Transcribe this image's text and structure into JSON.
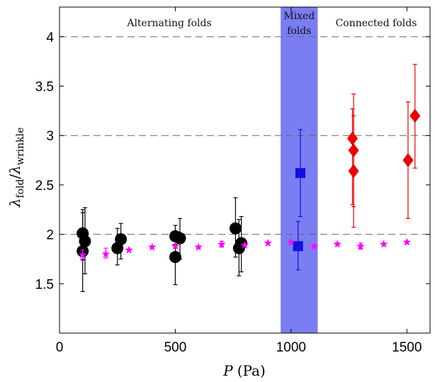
{
  "chart_data": {
    "type": "scatter",
    "xlim": [
      0,
      1600
    ],
    "ylim": [
      1.0,
      4.3
    ],
    "xticks": [
      "0",
      "500",
      "1000",
      "1500"
    ],
    "xtick_values": [
      0,
      500,
      1000,
      1500
    ],
    "yticks": [
      "1.5",
      "2",
      "2.5",
      "3",
      "3.5",
      "4"
    ],
    "ytick_values": [
      1.5,
      2,
      2.5,
      3,
      3.5,
      4
    ],
    "xlabel_main": "P",
    "xlabel_unit": "(Pa)",
    "ylabel_parts": {
      "lambda": "λ",
      "num_sub": "fold",
      "slash": "/",
      "den_sub": "wrinkle"
    },
    "dashed_lines": [
      2,
      3,
      4
    ],
    "mixed_band": {
      "x0": 955,
      "x1": 1115,
      "color": "#7b7df2"
    },
    "regions": {
      "alternating": "Alternating folds",
      "mixed_line1": "Mixed",
      "mixed_line2": "folds",
      "connected": "Connected folds"
    },
    "series": [
      {
        "marker": "circle",
        "color": "#000000",
        "points": [
          {
            "x": 100,
            "y": 1.83,
            "lo": 1.42,
            "hi": 2.22
          },
          {
            "x": 100,
            "y": 2.01,
            "lo": 1.74,
            "hi": 2.25
          },
          {
            "x": 110,
            "y": 1.93,
            "lo": 1.6,
            "hi": 2.27
          },
          {
            "x": 250,
            "y": 1.86,
            "lo": 1.69,
            "hi": 2.06
          },
          {
            "x": 265,
            "y": 1.95,
            "lo": 1.75,
            "hi": 2.11
          },
          {
            "x": 500,
            "y": 1.98,
            "lo": 1.9,
            "hi": 2.09
          },
          {
            "x": 500,
            "y": 1.77,
            "lo": 1.49,
            "hi": 2.02
          },
          {
            "x": 520,
            "y": 1.96,
            "lo": 1.75,
            "hi": 2.16
          },
          {
            "x": 760,
            "y": 2.06,
            "lo": 1.77,
            "hi": 2.37
          },
          {
            "x": 775,
            "y": 1.86,
            "lo": 1.58,
            "hi": 2.15
          },
          {
            "x": 785,
            "y": 1.91,
            "lo": 1.62,
            "hi": 2.18
          }
        ]
      },
      {
        "marker": "square",
        "color": "#1010e0",
        "points": [
          {
            "x": 1040,
            "y": 2.62,
            "lo": 2.18,
            "hi": 3.06
          },
          {
            "x": 1030,
            "y": 1.88,
            "lo": 1.64,
            "hi": 2.13
          }
        ]
      },
      {
        "marker": "diamond",
        "color": "#ee0000",
        "points": [
          {
            "x": 1265,
            "y": 2.97,
            "lo": 2.3,
            "hi": 3.27
          },
          {
            "x": 1270,
            "y": 2.85,
            "lo": 2.28,
            "hi": 3.42
          },
          {
            "x": 1270,
            "y": 2.64,
            "lo": 2.07,
            "hi": 3.2
          },
          {
            "x": 1505,
            "y": 2.75,
            "lo": 2.16,
            "hi": 3.34
          },
          {
            "x": 1535,
            "y": 3.2,
            "lo": 2.67,
            "hi": 3.72
          }
        ]
      },
      {
        "marker": "star",
        "color": "#ff00ff",
        "points": [
          {
            "x": 100,
            "y": 1.79,
            "lo": 1.75,
            "hi": 1.84
          },
          {
            "x": 200,
            "y": 1.8,
            "lo": 1.76,
            "hi": 1.86
          },
          {
            "x": 300,
            "y": 1.84
          },
          {
            "x": 400,
            "y": 1.87
          },
          {
            "x": 500,
            "y": 1.88
          },
          {
            "x": 600,
            "y": 1.87
          },
          {
            "x": 700,
            "y": 1.9,
            "lo": 1.87,
            "hi": 1.93
          },
          {
            "x": 800,
            "y": 1.89
          },
          {
            "x": 900,
            "y": 1.91
          },
          {
            "x": 1000,
            "y": 1.92
          },
          {
            "x": 1100,
            "y": 1.88
          },
          {
            "x": 1200,
            "y": 1.9
          },
          {
            "x": 1300,
            "y": 1.88,
            "lo": 1.85,
            "hi": 1.91
          },
          {
            "x": 1400,
            "y": 1.9
          },
          {
            "x": 1500,
            "y": 1.92
          }
        ]
      }
    ]
  }
}
